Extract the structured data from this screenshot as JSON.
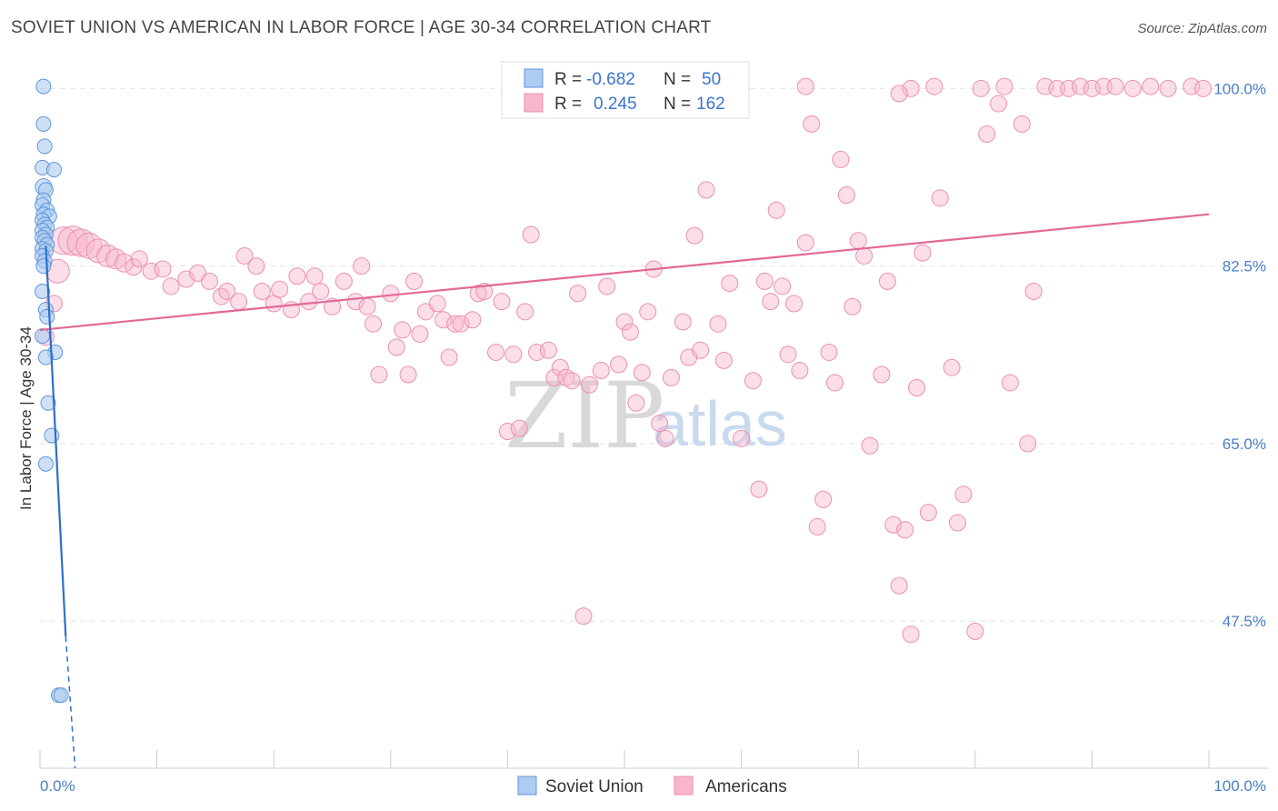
{
  "title": "SOVIET UNION VS AMERICAN IN LABOR FORCE | AGE 30-34 CORRELATION CHART",
  "source": "Source: ZipAtlas.com",
  "watermark": {
    "zip": "ZIP",
    "atlas": "atlas"
  },
  "legend": {
    "r_label": "R =",
    "n_label": "N =",
    "soviet": {
      "r": "-0.682",
      "n": "50"
    },
    "americans": {
      "r": "0.245",
      "n": "162"
    }
  },
  "bottom_legend": [
    "Soviet Union",
    "Americans"
  ],
  "colors": {
    "soviet_fill": "#aecbf0",
    "soviet_stroke": "#5e96dc",
    "soviet_line": "#2d6fce",
    "american_fill": "#f7b6cc",
    "american_stroke": "#ec8fb0",
    "american_line": "#e26994",
    "tick_text": "#4a7fc9",
    "grid": "#e5e5e5"
  },
  "chart_data": {
    "type": "scatter",
    "title": "SOVIET UNION VS AMERICAN IN LABOR FORCE | AGE 30-34 CORRELATION CHART",
    "xlabel": "",
    "ylabel": "In Labor Force | Age 30-34",
    "xlim": [
      0,
      100
    ],
    "ylim": [
      33,
      102
    ],
    "x_tick_labels": [
      "0.0%",
      "100.0%"
    ],
    "y_ticks": [
      47.5,
      65.0,
      82.5,
      100.0
    ],
    "y_tick_labels": [
      "47.5%",
      "65.0%",
      "82.5%",
      "100.0%"
    ],
    "grid": true,
    "legend_position": "top-center",
    "series": [
      {
        "name": "Soviet Union",
        "r": -0.682,
        "n": 50,
        "trend": {
          "x": [
            0.5,
            2.2
          ],
          "y": [
            84.5,
            46.0
          ]
        },
        "trend_extension": {
          "x": [
            2.2,
            3.0
          ],
          "y": [
            46.0,
            33.0
          ]
        },
        "points": [
          [
            0.3,
            100.2,
            8
          ],
          [
            0.3,
            96.5,
            8
          ],
          [
            0.4,
            94.3,
            8
          ],
          [
            0.2,
            92.2,
            8
          ],
          [
            1.2,
            92.0,
            8
          ],
          [
            0.3,
            90.3,
            9
          ],
          [
            0.5,
            90.0,
            8
          ],
          [
            0.3,
            89.0,
            8
          ],
          [
            0.2,
            88.5,
            8
          ],
          [
            0.6,
            88.0,
            8
          ],
          [
            0.3,
            87.6,
            8
          ],
          [
            0.8,
            87.4,
            8
          ],
          [
            0.2,
            87.0,
            8
          ],
          [
            0.4,
            86.6,
            8
          ],
          [
            0.6,
            86.3,
            8
          ],
          [
            0.2,
            86.0,
            8
          ],
          [
            0.5,
            85.6,
            8
          ],
          [
            0.2,
            85.3,
            8
          ],
          [
            0.4,
            85.0,
            8
          ],
          [
            0.6,
            84.6,
            8
          ],
          [
            0.2,
            84.2,
            8
          ],
          [
            0.5,
            84.0,
            8
          ],
          [
            0.2,
            83.5,
            8
          ],
          [
            0.4,
            83.0,
            8
          ],
          [
            0.3,
            82.5,
            8
          ],
          [
            0.2,
            80.0,
            8
          ],
          [
            0.5,
            78.2,
            8
          ],
          [
            0.6,
            77.5,
            8
          ],
          [
            0.2,
            75.6,
            8
          ],
          [
            1.3,
            74.0,
            8
          ],
          [
            0.5,
            73.5,
            8
          ],
          [
            0.7,
            69.0,
            8
          ],
          [
            1.0,
            65.8,
            8
          ],
          [
            0.5,
            63.0,
            8
          ],
          [
            1.6,
            40.2,
            8
          ],
          [
            1.8,
            40.2,
            8
          ]
        ]
      },
      {
        "name": "Americans",
        "r": 0.245,
        "n": 162,
        "trend": {
          "x": [
            0.0,
            100.0
          ],
          "y": [
            76.2,
            87.6
          ]
        },
        "points": [
          [
            1.5,
            82.0,
            13
          ],
          [
            1.2,
            78.8,
            9
          ],
          [
            0.5,
            75.5,
            9
          ],
          [
            2.0,
            85.0,
            15
          ],
          [
            2.8,
            85.0,
            16
          ],
          [
            3.5,
            84.8,
            15
          ],
          [
            4.2,
            84.5,
            14
          ],
          [
            5.0,
            84.0,
            13
          ],
          [
            5.8,
            83.5,
            12
          ],
          [
            6.5,
            83.2,
            11
          ],
          [
            7.2,
            82.8,
            10
          ],
          [
            8.0,
            82.4,
            9
          ],
          [
            8.5,
            83.2,
            9
          ],
          [
            9.5,
            82.0,
            9
          ],
          [
            10.5,
            82.2,
            9
          ],
          [
            11.2,
            80.5,
            9
          ],
          [
            12.5,
            81.2,
            9
          ],
          [
            13.5,
            81.8,
            9
          ],
          [
            14.5,
            81.0,
            9
          ],
          [
            15.5,
            79.5,
            9
          ],
          [
            16.0,
            80.0,
            9
          ],
          [
            17.0,
            79.0,
            9
          ],
          [
            17.5,
            83.5,
            9
          ],
          [
            18.5,
            82.5,
            9
          ],
          [
            19.0,
            80.0,
            9
          ],
          [
            20.0,
            78.8,
            9
          ],
          [
            20.5,
            80.2,
            9
          ],
          [
            21.5,
            78.2,
            9
          ],
          [
            22.0,
            81.5,
            9
          ],
          [
            23.0,
            79.0,
            9
          ],
          [
            23.5,
            81.5,
            9
          ],
          [
            24.0,
            80.0,
            9
          ],
          [
            25.0,
            78.5,
            9
          ],
          [
            26.0,
            81.0,
            9
          ],
          [
            27.0,
            79.0,
            9
          ],
          [
            27.5,
            82.5,
            9
          ],
          [
            28.0,
            78.5,
            9
          ],
          [
            28.5,
            76.8,
            9
          ],
          [
            29.0,
            71.8,
            9
          ],
          [
            30.0,
            79.8,
            9
          ],
          [
            30.5,
            74.5,
            9
          ],
          [
            31.0,
            76.2,
            9
          ],
          [
            31.5,
            71.8,
            9
          ],
          [
            32.0,
            81.0,
            9
          ],
          [
            32.5,
            75.8,
            9
          ],
          [
            33.0,
            78.0,
            9
          ],
          [
            34.0,
            78.8,
            9
          ],
          [
            34.5,
            77.2,
            9
          ],
          [
            35.0,
            73.5,
            9
          ],
          [
            35.5,
            76.8,
            9
          ],
          [
            36.0,
            76.8,
            9
          ],
          [
            37.0,
            77.2,
            9
          ],
          [
            37.5,
            79.8,
            9
          ],
          [
            38.0,
            80.0,
            9
          ],
          [
            39.0,
            74.0,
            9
          ],
          [
            39.5,
            79.0,
            9
          ],
          [
            40.0,
            66.2,
            9
          ],
          [
            40.5,
            73.8,
            9
          ],
          [
            41.0,
            66.5,
            9
          ],
          [
            41.5,
            78.0,
            9
          ],
          [
            42.0,
            85.6,
            9
          ],
          [
            42.5,
            74.0,
            9
          ],
          [
            43.5,
            74.2,
            9
          ],
          [
            44.0,
            71.5,
            9
          ],
          [
            44.5,
            72.5,
            9
          ],
          [
            45.0,
            71.5,
            9
          ],
          [
            45.5,
            71.2,
            9
          ],
          [
            46.0,
            79.8,
            9
          ],
          [
            46.5,
            48.0,
            9
          ],
          [
            47.0,
            70.8,
            9
          ],
          [
            48.0,
            72.2,
            9
          ],
          [
            48.5,
            80.5,
            9
          ],
          [
            49.5,
            72.8,
            9
          ],
          [
            50.0,
            77.0,
            9
          ],
          [
            50.5,
            76.0,
            9
          ],
          [
            51.0,
            69.0,
            9
          ],
          [
            51.5,
            72.0,
            9
          ],
          [
            52.0,
            78.0,
            9
          ],
          [
            52.5,
            82.2,
            9
          ],
          [
            53.0,
            67.0,
            9
          ],
          [
            53.5,
            65.5,
            9
          ],
          [
            54.0,
            71.5,
            9
          ],
          [
            55.0,
            77.0,
            9
          ],
          [
            55.5,
            73.5,
            9
          ],
          [
            56.0,
            85.5,
            9
          ],
          [
            56.5,
            74.2,
            9
          ],
          [
            57.0,
            90.0,
            9
          ],
          [
            58.0,
            76.8,
            9
          ],
          [
            58.5,
            73.2,
            9
          ],
          [
            59.0,
            80.8,
            9
          ],
          [
            60.0,
            65.5,
            9
          ],
          [
            61.0,
            71.2,
            9
          ],
          [
            61.5,
            60.5,
            9
          ],
          [
            62.0,
            81.0,
            9
          ],
          [
            62.5,
            79.0,
            9
          ],
          [
            63.0,
            88.0,
            9
          ],
          [
            63.5,
            80.5,
            9
          ],
          [
            64.0,
            73.8,
            9
          ],
          [
            64.5,
            78.8,
            9
          ],
          [
            65.0,
            72.2,
            9
          ],
          [
            65.5,
            84.8,
            9
          ],
          [
            66.0,
            96.5,
            9
          ],
          [
            66.5,
            56.8,
            9
          ],
          [
            67.0,
            59.5,
            9
          ],
          [
            67.5,
            74.0,
            9
          ],
          [
            68.0,
            71.0,
            9
          ],
          [
            68.5,
            93.0,
            9
          ],
          [
            69.0,
            89.5,
            9
          ],
          [
            69.5,
            78.5,
            9
          ],
          [
            70.0,
            85.0,
            9
          ],
          [
            70.5,
            83.5,
            9
          ],
          [
            71.0,
            64.8,
            9
          ],
          [
            72.0,
            71.8,
            9
          ],
          [
            72.5,
            81.0,
            9
          ],
          [
            73.0,
            57.0,
            9
          ],
          [
            73.5,
            51.0,
            9
          ],
          [
            74.0,
            56.5,
            9
          ],
          [
            74.5,
            46.2,
            9
          ],
          [
            75.0,
            70.5,
            9
          ],
          [
            75.5,
            83.8,
            9
          ],
          [
            76.0,
            58.2,
            9
          ],
          [
            77.0,
            89.2,
            9
          ],
          [
            78.0,
            72.5,
            9
          ],
          [
            78.5,
            57.2,
            9
          ],
          [
            79.0,
            60.0,
            9
          ],
          [
            80.0,
            46.5,
            9
          ],
          [
            81.0,
            95.5,
            9
          ],
          [
            82.0,
            98.5,
            9
          ],
          [
            83.0,
            71.0,
            9
          ],
          [
            84.0,
            96.5,
            9
          ],
          [
            85.0,
            80.0,
            9
          ],
          [
            86.0,
            100.2,
            9
          ],
          [
            87.0,
            100.0,
            9
          ],
          [
            88.0,
            100.0,
            9
          ],
          [
            89.0,
            100.2,
            9
          ],
          [
            90.0,
            100.0,
            9
          ],
          [
            91.0,
            100.2,
            9
          ],
          [
            92.0,
            100.2,
            9
          ],
          [
            93.5,
            100.0,
            9
          ],
          [
            95.0,
            100.2,
            9
          ],
          [
            96.5,
            100.0,
            9
          ],
          [
            98.5,
            100.2,
            9
          ],
          [
            99.5,
            100.0,
            9
          ],
          [
            84.5,
            65.0,
            9
          ],
          [
            52.0,
            100.2,
            9
          ],
          [
            54.5,
            100.0,
            9
          ],
          [
            56.5,
            100.2,
            9
          ],
          [
            58.0,
            100.0,
            9
          ],
          [
            57.5,
            99.0,
            9
          ],
          [
            65.5,
            100.2,
            9
          ],
          [
            74.5,
            100.0,
            9
          ],
          [
            76.5,
            100.2,
            9
          ],
          [
            73.5,
            99.5,
            9
          ],
          [
            80.5,
            100.0,
            9
          ],
          [
            82.5,
            100.2,
            9
          ]
        ]
      }
    ]
  }
}
